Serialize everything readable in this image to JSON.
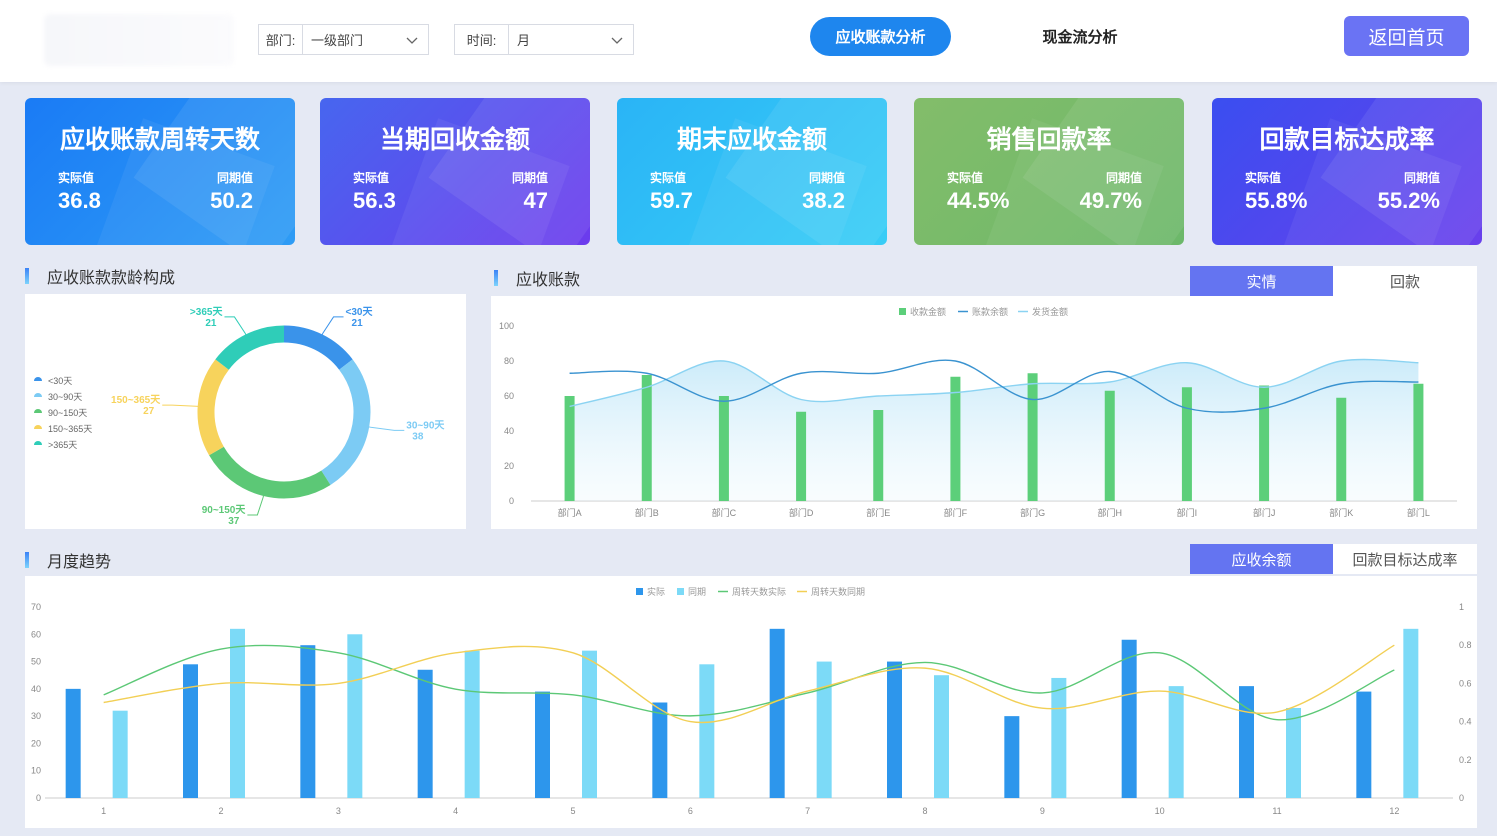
{
  "header": {
    "dept_label": "部门:",
    "dept_value": "一级部门",
    "time_label": "时间:",
    "time_value": "月",
    "tab_ar": "应收账款分析",
    "tab_cf": "现金流分析",
    "home": "返回首页"
  },
  "kpis": [
    {
      "title": "应收账款周转天数",
      "actual_label": "实际值",
      "actual": "36.8",
      "prior_label": "同期值",
      "prior": "50.2"
    },
    {
      "title": "当期回收金额",
      "actual_label": "实际值",
      "actual": "56.3",
      "prior_label": "同期值",
      "prior": "47"
    },
    {
      "title": "期末应收金额",
      "actual_label": "实际值",
      "actual": "59.7",
      "prior_label": "同期值",
      "prior": "38.2"
    },
    {
      "title": "销售回款率",
      "actual_label": "实际值",
      "actual": "44.5%",
      "prior_label": "同期值",
      "prior": "49.7%"
    },
    {
      "title": "回款目标达成率",
      "actual_label": "实际值",
      "actual": "55.8%",
      "prior_label": "同期值",
      "prior": "55.2%"
    }
  ],
  "sections": {
    "aging": "应收账款款龄构成",
    "ar": "应收账款",
    "monthly": "月度趋势",
    "ar_seg": [
      "实情",
      "回款"
    ],
    "monthly_seg": [
      "应收余额",
      "回款目标达成率"
    ]
  },
  "colors": {
    "blue": "#3a93ea",
    "lightblue": "#7ccbf4",
    "green": "#5cc876",
    "yellow": "#f7d35c",
    "teal": "#2fcdb8"
  },
  "chart_data": [
    {
      "type": "pie",
      "title": "",
      "legend": [
        "<30天",
        "30~90天",
        "90~150天",
        "150~365天",
        ">365天"
      ],
      "slices": [
        {
          "name": "<30天",
          "value": 21,
          "color": "#3a93ea"
        },
        {
          "name": "30~90天",
          "value": 38,
          "color": "#7ccbf4"
        },
        {
          "name": "90~150天",
          "value": 37,
          "color": "#5cc876"
        },
        {
          "name": "150~365天",
          "value": 27,
          "color": "#f7d35c"
        },
        {
          "name": ">365天",
          "value": 21,
          "color": "#2fcdb8"
        }
      ]
    },
    {
      "type": "bar",
      "categories": [
        "部门A",
        "部门B",
        "部门C",
        "部门D",
        "部门E",
        "部门F",
        "部门G",
        "部门H",
        "部门I",
        "部门J",
        "部门K",
        "部门L"
      ],
      "ylim": [
        0,
        100
      ],
      "yticks": [
        0,
        20,
        40,
        60,
        80,
        100
      ],
      "series": [
        {
          "name": "收款金额",
          "kind": "bar",
          "color": "#5ccf7a",
          "values": [
            60,
            72,
            60,
            51,
            52,
            71,
            73,
            63,
            65,
            66,
            59,
            67
          ]
        },
        {
          "name": "账款余额",
          "kind": "line",
          "color": "#3a93d0",
          "values": [
            73,
            73,
            57,
            73,
            73,
            80,
            58,
            74,
            53,
            53,
            67,
            68
          ]
        },
        {
          "name": "发货金额",
          "kind": "area",
          "color": "#8bd3f2",
          "values": [
            54,
            65,
            80,
            58,
            60,
            62,
            67,
            68,
            79,
            65,
            80,
            79
          ]
        }
      ]
    },
    {
      "type": "bar",
      "categories": [
        "1",
        "2",
        "3",
        "4",
        "5",
        "6",
        "7",
        "8",
        "9",
        "10",
        "11",
        "12"
      ],
      "ylim": [
        0,
        70
      ],
      "yticks": [
        0,
        10,
        20,
        30,
        40,
        50,
        60,
        70
      ],
      "y2lim": [
        0,
        1
      ],
      "y2ticks": [
        "0",
        "0.2",
        "0.4",
        "0.6",
        "0.8",
        "1"
      ],
      "series": [
        {
          "name": "实际",
          "kind": "bar",
          "color": "#2d96ec",
          "values": [
            40,
            49,
            56,
            47,
            39,
            35,
            62,
            50,
            30,
            58,
            41,
            39
          ]
        },
        {
          "name": "同期",
          "kind": "bar",
          "color": "#7cdaf7",
          "values": [
            32,
            62,
            60,
            54,
            54,
            49,
            50,
            45,
            44,
            41,
            33,
            62
          ]
        },
        {
          "name": "周转天数实际",
          "kind": "line",
          "axis": "right",
          "color": "#5cc876",
          "values": [
            0.54,
            0.78,
            0.76,
            0.57,
            0.54,
            0.43,
            0.55,
            0.71,
            0.55,
            0.76,
            0.41,
            0.67
          ]
        },
        {
          "name": "周转天数同期",
          "kind": "line",
          "axis": "right",
          "color": "#f2cf55",
          "values": [
            0.5,
            0.6,
            0.6,
            0.76,
            0.76,
            0.4,
            0.56,
            0.68,
            0.47,
            0.56,
            0.45,
            0.8
          ]
        }
      ]
    }
  ]
}
